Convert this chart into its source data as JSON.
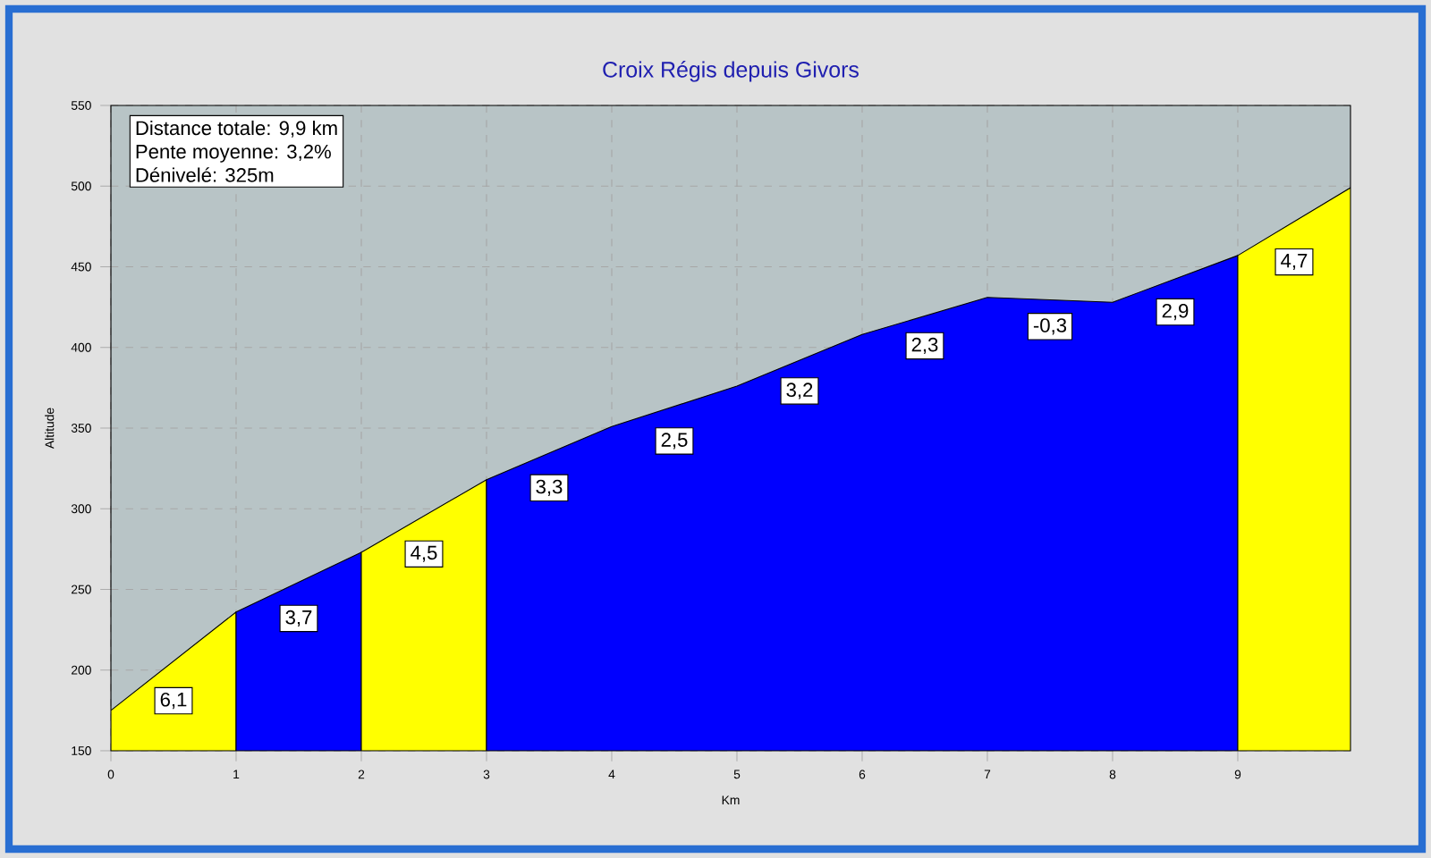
{
  "chart_data": {
    "type": "area",
    "title": "Croix Régis depuis Givors",
    "xlabel": "Km",
    "ylabel": "Altitude",
    "xlim": [
      0,
      9.9
    ],
    "xticks": [
      0,
      1,
      2,
      3,
      4,
      5,
      6,
      7,
      8,
      9
    ],
    "ylim": [
      150,
      550
    ],
    "yticks": [
      150,
      200,
      250,
      300,
      350,
      400,
      450,
      500,
      550
    ],
    "grid": true,
    "series": [
      {
        "color": "#ffff00",
        "x": [
          0,
          1
        ],
        "values": [
          175,
          236
        ]
      },
      {
        "color": "#0000ff",
        "x": [
          1,
          2
        ],
        "values": [
          236,
          273
        ]
      },
      {
        "color": "#ffff00",
        "x": [
          2,
          3
        ],
        "values": [
          273,
          318
        ]
      },
      {
        "color": "#0000ff",
        "x": [
          3,
          4,
          5,
          6,
          7,
          8,
          9
        ],
        "values": [
          318,
          351,
          376,
          408,
          431,
          428,
          457
        ]
      },
      {
        "color": "#ffff00",
        "x": [
          9,
          9.9
        ],
        "values": [
          457,
          499
        ]
      }
    ],
    "annotations": [
      "Distance totale: 9,9 km",
      "Pente moyenne: 3,2%",
      "Dénivelé: 325m",
      {
        "text": "6,1",
        "x": 0.5,
        "y": 181
      },
      {
        "text": "3,7",
        "x": 1.5,
        "y": 232
      },
      {
        "text": "4,5",
        "x": 2.5,
        "y": 272
      },
      {
        "text": "3,3",
        "x": 3.5,
        "y": 313
      },
      {
        "text": "2,5",
        "x": 4.5,
        "y": 342
      },
      {
        "text": "3,2",
        "x": 5.5,
        "y": 373
      },
      {
        "text": "2,3",
        "x": 6.5,
        "y": 401
      },
      {
        "text": "-0,3",
        "x": 7.5,
        "y": 413
      },
      {
        "text": "2,9",
        "x": 8.5,
        "y": 422
      },
      {
        "text": "4,7",
        "x": 9.45,
        "y": 453
      }
    ]
  }
}
